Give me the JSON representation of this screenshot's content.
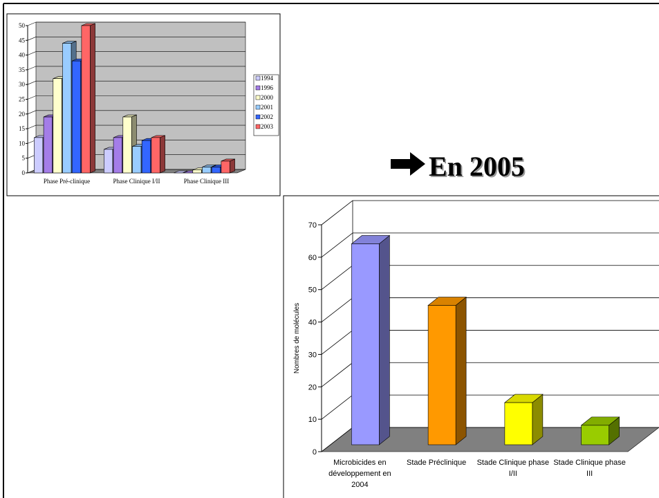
{
  "heading": "En 2005",
  "chart_data": [
    {
      "type": "bar3d-grouped",
      "categories": [
        "Phase Pré-clinique",
        "Phase Clinique I/II",
        "Phase Clinique III"
      ],
      "series": [
        {
          "name": "1994",
          "color": "#ccccff",
          "values": [
            12,
            8,
            0
          ]
        },
        {
          "name": "1996",
          "color": "#a47de8",
          "values": [
            19,
            12,
            0
          ]
        },
        {
          "name": "2000",
          "color": "#ffffcc",
          "values": [
            32,
            19,
            1
          ]
        },
        {
          "name": "2001",
          "color": "#99ccff",
          "values": [
            44,
            9,
            2
          ]
        },
        {
          "name": "2002",
          "color": "#3366ff",
          "values": [
            38,
            11,
            2
          ]
        },
        {
          "name": "2003",
          "color": "#ff6666",
          "values": [
            50,
            12,
            4
          ]
        }
      ],
      "ylim": [
        0,
        50
      ],
      "yticks": [
        0,
        5,
        10,
        15,
        20,
        25,
        30,
        35,
        40,
        45,
        50
      ],
      "grid": true,
      "legend": "right"
    },
    {
      "type": "bar3d",
      "ylabel": "Nombres de molécules",
      "categories": [
        "Microbicides en développement en 2004",
        "Stade Préclinique",
        "Stade Clinique phase I/II",
        "Stade Clinique phase III"
      ],
      "values": [
        62,
        43,
        13,
        6
      ],
      "colors": [
        "#9999ff",
        "#ff9900",
        "#ffff00",
        "#99cc00"
      ],
      "ylim": [
        0,
        70
      ],
      "yticks": [
        0,
        10,
        20,
        30,
        40,
        50,
        60,
        70
      ],
      "grid": true
    }
  ]
}
